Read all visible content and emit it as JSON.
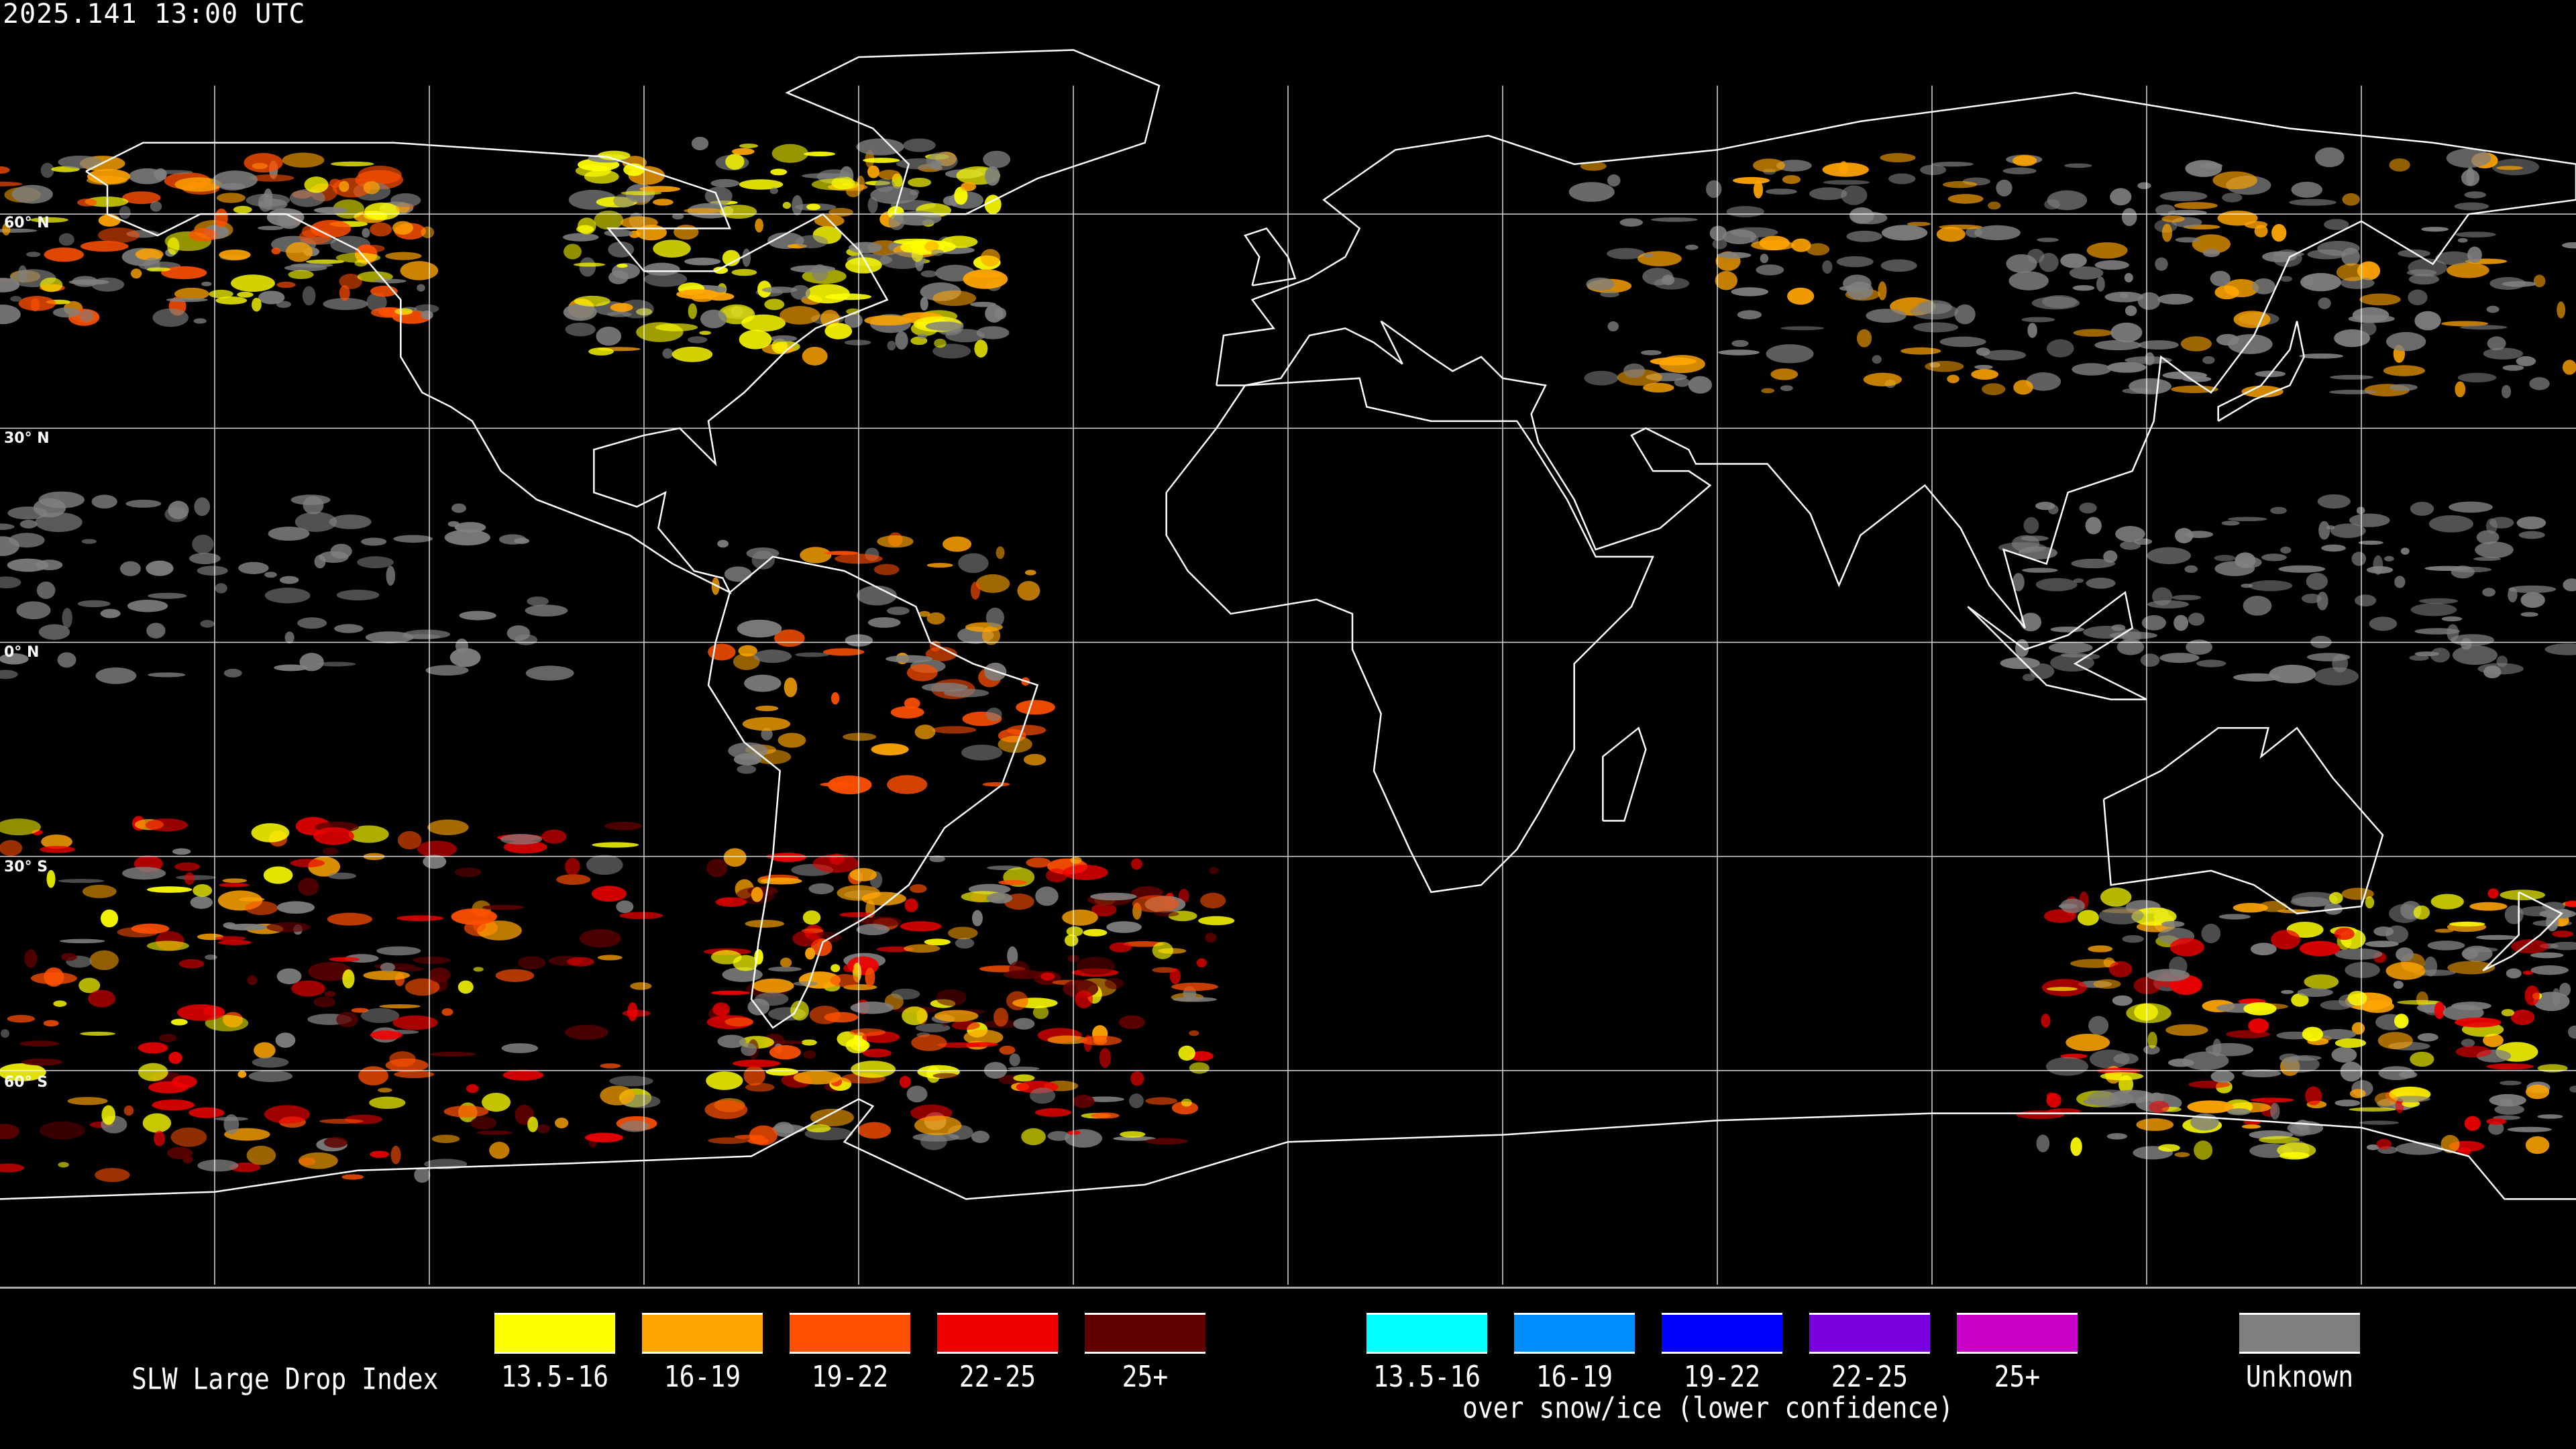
{
  "header": {
    "timestamp": "2025.141 13:00 UTC"
  },
  "map": {
    "projection": "equirectangular",
    "latitude_labels": [
      "60° N",
      "30° N",
      "0° N",
      "30° S",
      "60° S"
    ],
    "grid_color": "#ffffff",
    "coastline_color": "#ffffff",
    "background": "#000000"
  },
  "legend": {
    "title": "SLW Large Drop Index",
    "main": [
      {
        "label": "13.5-16",
        "color": "#ffff00"
      },
      {
        "label": "16-19",
        "color": "#ffa500"
      },
      {
        "label": "19-22",
        "color": "#ff5000"
      },
      {
        "label": "22-25",
        "color": "#f00000"
      },
      {
        "label": "25+",
        "color": "#600000"
      }
    ],
    "snow_ice": [
      {
        "label": "13.5-16",
        "color": "#00ffff"
      },
      {
        "label": "16-19",
        "color": "#008cff"
      },
      {
        "label": "19-22",
        "color": "#0000ff"
      },
      {
        "label": "22-25",
        "color": "#7800dc"
      },
      {
        "label": "25+",
        "color": "#c800c8"
      }
    ],
    "snow_ice_caption": "over snow/ice (lower confidence)",
    "unknown": {
      "label": "Unknown",
      "color": "#808080"
    }
  }
}
